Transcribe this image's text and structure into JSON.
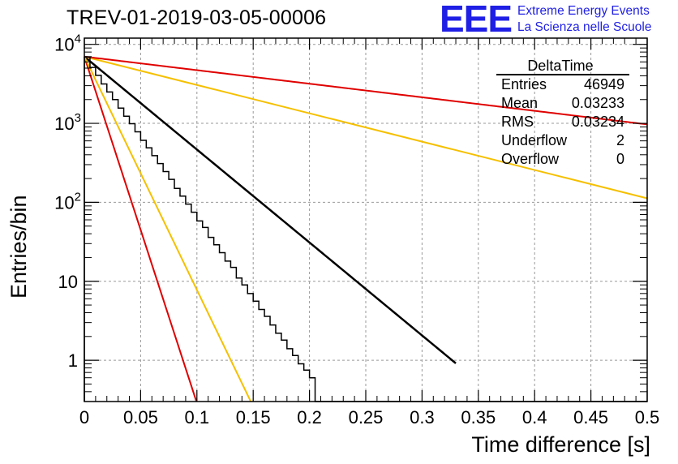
{
  "title": "TREV-01-2019-03-05-00006",
  "logo": {
    "mark": "EEE",
    "line1": "Extreme Energy Events",
    "line2": "La Scienza nelle Scuole",
    "color": "#1f1fe6"
  },
  "stats": {
    "name": "DeltaTime",
    "rows": [
      {
        "label": "Entries",
        "value": "46949"
      },
      {
        "label": "Mean",
        "value": "0.03233"
      },
      {
        "label": "RMS",
        "value": "0.03234"
      },
      {
        "label": "Underflow",
        "value": "2"
      },
      {
        "label": "Overflow",
        "value": "0"
      }
    ]
  },
  "chart_data": {
    "type": "histogram",
    "xlabel": "Time difference [s]",
    "ylabel": "Entries/bin",
    "xlim": [
      0,
      0.5
    ],
    "ylim": [
      0.3,
      12000
    ],
    "yscale": "log",
    "grid": true,
    "x_ticks": [
      "0",
      "0.05",
      "0.1",
      "0.15",
      "0.2",
      "0.25",
      "0.3",
      "0.35",
      "0.4",
      "0.45",
      "0.5"
    ],
    "y_ticks": [
      {
        "value": 1,
        "base": "1",
        "exp": ""
      },
      {
        "value": 10,
        "base": "10",
        "exp": ""
      },
      {
        "value": 100,
        "base": "10",
        "exp": "2"
      },
      {
        "value": 1000,
        "base": "10",
        "exp": "3"
      },
      {
        "value": 10000,
        "base": "10",
        "exp": "4"
      }
    ],
    "bin_width": 0.005,
    "histogram": [
      6900,
      5100,
      4050,
      3150,
      2500,
      2000,
      1560,
      1230,
      990,
      780,
      610,
      490,
      390,
      310,
      245,
      195,
      150,
      120,
      95,
      75,
      58,
      48,
      36,
      29,
      23,
      18,
      15,
      11,
      9,
      7,
      5.6,
      4.4,
      3.6,
      2.8,
      2.2,
      1.8,
      1.4,
      1.15,
      0.9,
      0.75,
      0.6,
      0,
      0,
      0,
      0,
      0,
      0,
      0,
      0,
      0,
      0,
      0,
      0,
      0,
      0,
      0,
      0,
      0,
      0,
      0,
      0,
      0,
      0,
      0,
      0,
      0,
      0,
      0,
      0,
      0,
      0,
      0,
      0,
      0,
      0,
      0,
      0,
      0,
      0,
      0,
      0,
      0,
      0,
      0,
      0,
      0,
      0,
      0,
      0,
      0,
      0,
      0,
      0,
      0,
      0,
      0,
      0,
      0,
      0,
      0
    ],
    "series": [
      {
        "role": "fit",
        "color": "#000000",
        "A": 7000,
        "tau": 0.0369,
        "xmax": 0.33,
        "width": 2.5
      },
      {
        "role": "reference",
        "color": "#e00000",
        "A": 7000,
        "tau": 0.0099,
        "xmax": 0.5,
        "width": 2
      },
      {
        "role": "reference",
        "color": "#f5c000",
        "A": 7000,
        "tau": 0.0147,
        "xmax": 0.5,
        "width": 2
      },
      {
        "role": "reference",
        "color": "#f5c000",
        "A": 7000,
        "tau": 0.121,
        "xmax": 0.5,
        "width": 2
      },
      {
        "role": "reference",
        "color": "#e00000",
        "A": 7000,
        "tau": 0.253,
        "xmax": 0.5,
        "width": 2
      }
    ]
  }
}
